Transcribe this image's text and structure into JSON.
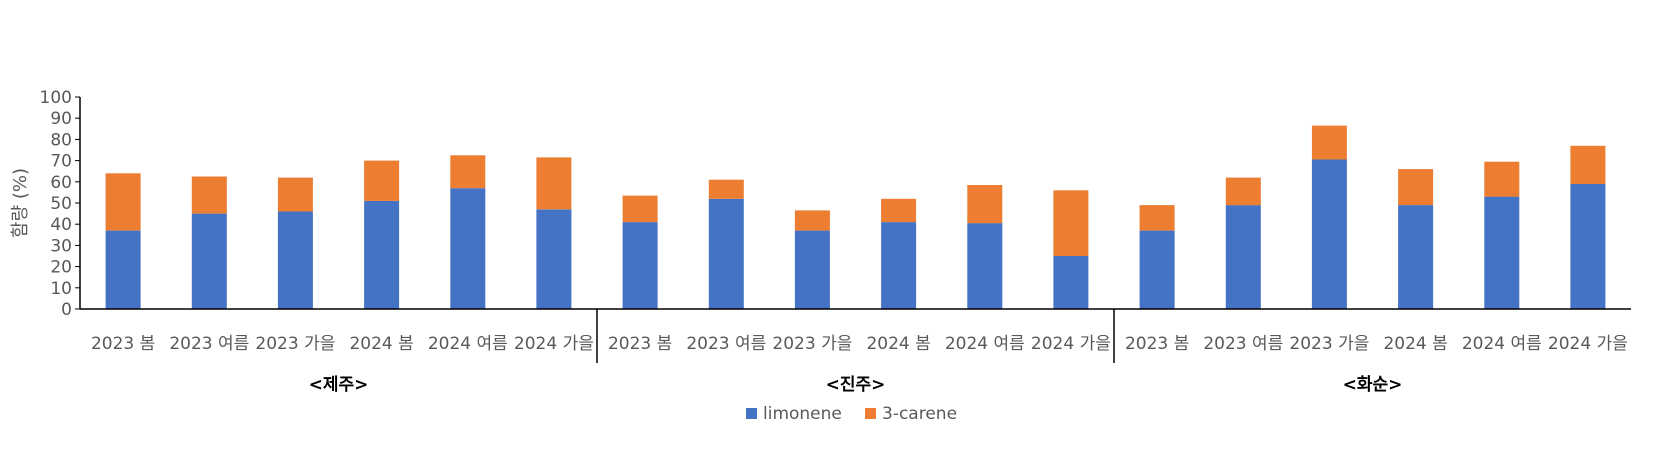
{
  "chart_data": {
    "type": "bar",
    "stacked": true,
    "ylabel": "함량 (%)",
    "ylim": [
      0,
      100
    ],
    "yticks": [
      "0",
      "10",
      "20",
      "30",
      "40",
      "50",
      "60",
      "70",
      "80",
      "90",
      "100"
    ],
    "categories": [
      "2023 봄",
      "2023 여름",
      "2023 가을",
      "2024 봄",
      "2024 여름",
      "2024 가을",
      "2023 봄",
      "2023 여름",
      "2023 가을",
      "2024 봄",
      "2024 여름",
      "2024 가을",
      "2023 봄",
      "2023 여름",
      "2023 가을",
      "2024 봄",
      "2024 여름",
      "2024 가을"
    ],
    "groups": [
      {
        "label": "<제주>",
        "start": 0,
        "count": 6
      },
      {
        "label": "<진주>",
        "start": 6,
        "count": 6
      },
      {
        "label": "<화순>",
        "start": 12,
        "count": 6
      }
    ],
    "series": [
      {
        "name": "limonene",
        "color": "#4472C4",
        "values": [
          37,
          45,
          46,
          51,
          57,
          47,
          41,
          52,
          37,
          41,
          40.5,
          25,
          37,
          49,
          70.5,
          49,
          53,
          59
        ]
      },
      {
        "name": "3-carene",
        "color": "#ED7D31",
        "values": [
          27,
          17.5,
          16,
          19,
          15.5,
          24.5,
          12.5,
          9,
          9.5,
          11,
          18,
          31,
          12,
          13,
          16,
          17,
          16.5,
          18
        ]
      }
    ],
    "legend_position": "bottom",
    "grid": false
  }
}
